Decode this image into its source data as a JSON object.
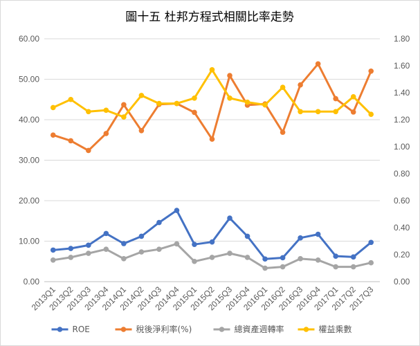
{
  "chart_data": {
    "type": "line",
    "title": "圖十五  杜邦方程式相關比率走勢",
    "categories": [
      "2013Q1",
      "2013Q2",
      "2013Q3",
      "2013Q4",
      "2014Q1",
      "2014Q2",
      "2014Q3",
      "2014Q4",
      "2015Q1",
      "2015Q2",
      "2015Q3",
      "2015Q4",
      "2016Q1",
      "2016Q2",
      "2016Q3",
      "2016Q4",
      "2017Q1",
      "2017Q2",
      "2017Q3"
    ],
    "y_left": {
      "ylim": [
        0,
        60
      ],
      "ticks": [
        "0.00",
        "10.00",
        "20.00",
        "30.00",
        "40.00",
        "50.00",
        "60.00"
      ]
    },
    "y_right": {
      "ylim": [
        0,
        1.8
      ],
      "ticks": [
        "0.00",
        "0.20",
        "0.40",
        "0.60",
        "0.80",
        "1.00",
        "1.20",
        "1.40",
        "1.60",
        "1.80"
      ]
    },
    "grid": true,
    "legend_position": "bottom",
    "series": [
      {
        "name": "ROE",
        "axis": "left",
        "color": "#4472c4",
        "values": [
          7.8,
          8.2,
          9.0,
          11.9,
          9.4,
          11.2,
          14.6,
          17.6,
          9.2,
          9.8,
          15.7,
          11.2,
          5.6,
          5.9,
          10.8,
          11.7,
          6.3,
          6.1,
          9.7
        ]
      },
      {
        "name": "稅後淨利率(%)",
        "axis": "left",
        "color": "#ed7d31",
        "values": [
          36.2,
          34.8,
          32.4,
          36.6,
          43.7,
          37.3,
          43.8,
          44.0,
          41.8,
          35.2,
          50.9,
          43.6,
          43.9,
          36.9,
          48.6,
          53.8,
          45.2,
          41.9,
          52.0
        ]
      },
      {
        "name": "總資產週轉率",
        "axis": "right",
        "color": "#a5a5a5",
        "values": [
          0.16,
          0.18,
          0.21,
          0.24,
          0.17,
          0.22,
          0.24,
          0.28,
          0.15,
          0.18,
          0.21,
          0.18,
          0.1,
          0.11,
          0.17,
          0.16,
          0.11,
          0.11,
          0.14
        ]
      },
      {
        "name": "權益乘數",
        "axis": "right",
        "color": "#ffc000",
        "values": [
          1.29,
          1.35,
          1.26,
          1.27,
          1.22,
          1.38,
          1.32,
          1.32,
          1.36,
          1.57,
          1.36,
          1.33,
          1.31,
          1.44,
          1.26,
          1.26,
          1.26,
          1.37,
          1.24
        ]
      }
    ]
  }
}
